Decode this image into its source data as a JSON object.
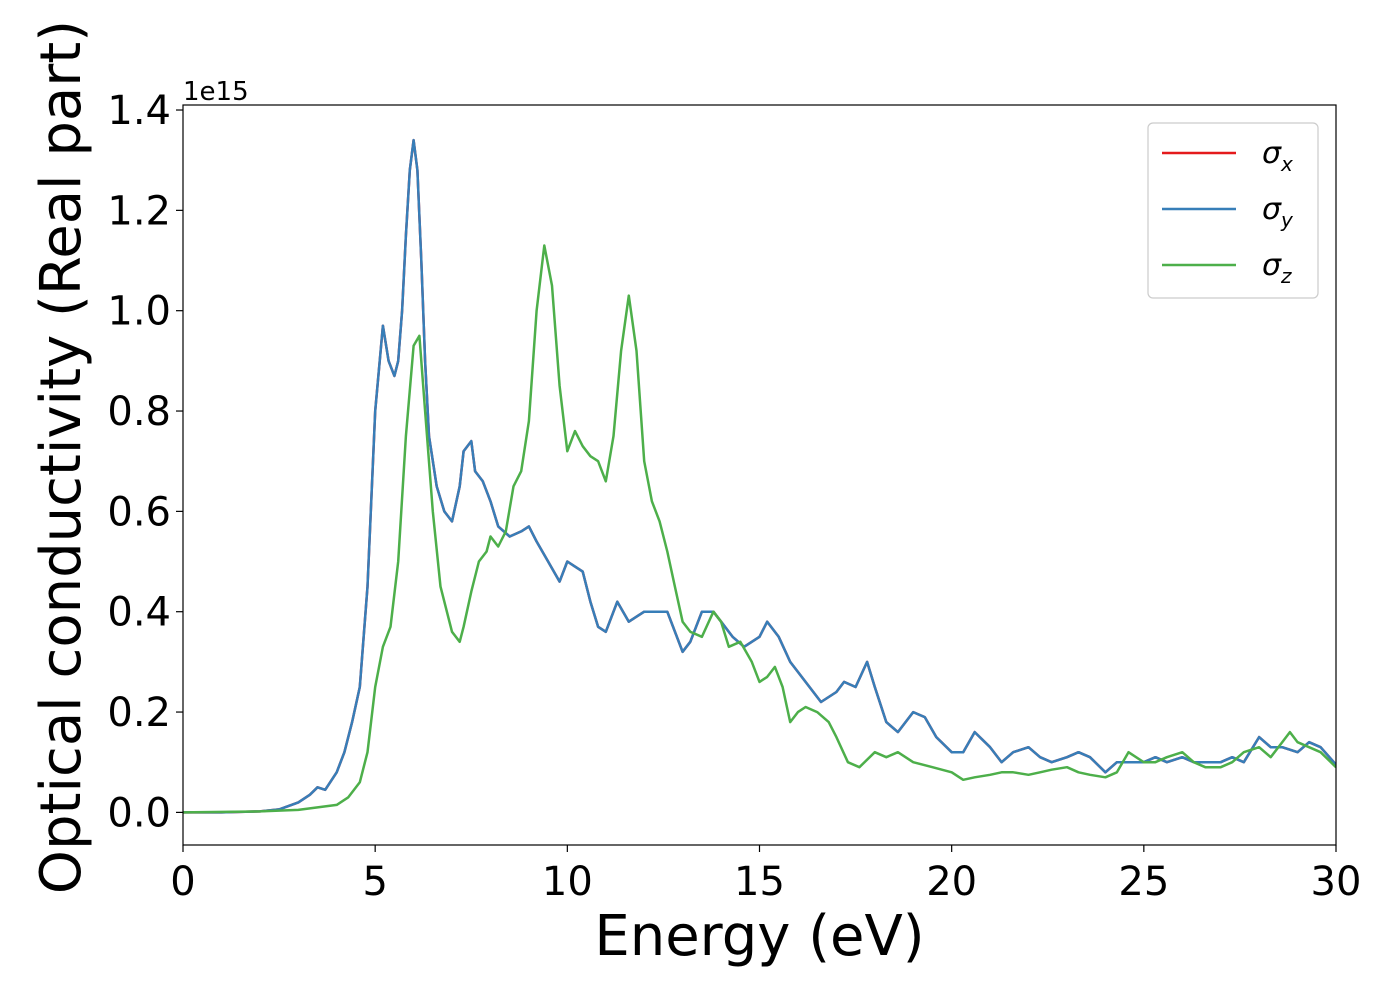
{
  "chart_data": {
    "type": "line",
    "xlabel": "Energy (eV)",
    "ylabel": "Optical conductivity (Real part)",
    "y_offset_text": "1e15",
    "y_multiplier": 1000000000000000.0,
    "xlim": [
      0,
      30
    ],
    "ylim": [
      -0.065,
      1.41
    ],
    "xticks": [
      0,
      5,
      10,
      15,
      20,
      25,
      30
    ],
    "xtick_labels": [
      "0",
      "5",
      "10",
      "15",
      "20",
      "25",
      "30"
    ],
    "yticks": [
      0.0,
      0.2,
      0.4,
      0.6,
      0.8,
      1.0,
      1.2,
      1.4
    ],
    "ytick_labels": [
      "0.0",
      "0.2",
      "0.4",
      "0.6",
      "0.8",
      "1.0",
      "1.2",
      "1.4"
    ],
    "grid": false,
    "legend_position": "top-right",
    "series": [
      {
        "name": "σx",
        "legend_symbol": "σ",
        "legend_subscript": "x",
        "color": "#e41a1c",
        "x": [
          0,
          1,
          2,
          2.5,
          3,
          3.3,
          3.5,
          3.7,
          4,
          4.2,
          4.4,
          4.6,
          4.8,
          5,
          5.2,
          5.35,
          5.5,
          5.6,
          5.7,
          5.8,
          5.9,
          6.0,
          6.1,
          6.2,
          6.3,
          6.4,
          6.6,
          6.8,
          7.0,
          7.2,
          7.3,
          7.5,
          7.6,
          7.8,
          8.0,
          8.2,
          8.5,
          8.8,
          9.0,
          9.2,
          9.5,
          9.8,
          10.0,
          10.2,
          10.4,
          10.6,
          10.8,
          11.0,
          11.3,
          11.6,
          12.0,
          12.3,
          12.6,
          13.0,
          13.2,
          13.5,
          13.8,
          14.0,
          14.3,
          14.6,
          15.0,
          15.2,
          15.5,
          15.8,
          16.0,
          16.3,
          16.6,
          17.0,
          17.2,
          17.5,
          17.8,
          18.0,
          18.3,
          18.6,
          19.0,
          19.3,
          19.6,
          20.0,
          20.3,
          20.6,
          21.0,
          21.3,
          21.6,
          22.0,
          22.3,
          22.6,
          23.0,
          23.3,
          23.6,
          24.0,
          24.3,
          24.6,
          25.0,
          25.3,
          25.6,
          26.0,
          26.3,
          26.6,
          27.0,
          27.3,
          27.6,
          28.0,
          28.3,
          28.6,
          29.0,
          29.3,
          29.6,
          30.0
        ],
        "y": [
          0,
          0,
          0.002,
          0.006,
          0.02,
          0.035,
          0.05,
          0.045,
          0.08,
          0.12,
          0.18,
          0.25,
          0.45,
          0.8,
          0.97,
          0.9,
          0.87,
          0.9,
          1.0,
          1.15,
          1.28,
          1.34,
          1.28,
          1.1,
          0.9,
          0.75,
          0.65,
          0.6,
          0.58,
          0.65,
          0.72,
          0.74,
          0.68,
          0.66,
          0.62,
          0.57,
          0.55,
          0.56,
          0.57,
          0.54,
          0.5,
          0.46,
          0.5,
          0.49,
          0.48,
          0.42,
          0.37,
          0.36,
          0.42,
          0.38,
          0.4,
          0.4,
          0.4,
          0.32,
          0.34,
          0.4,
          0.4,
          0.38,
          0.35,
          0.33,
          0.35,
          0.38,
          0.35,
          0.3,
          0.28,
          0.25,
          0.22,
          0.24,
          0.26,
          0.25,
          0.3,
          0.25,
          0.18,
          0.16,
          0.2,
          0.19,
          0.15,
          0.12,
          0.12,
          0.16,
          0.13,
          0.1,
          0.12,
          0.13,
          0.11,
          0.1,
          0.11,
          0.12,
          0.11,
          0.08,
          0.1,
          0.1,
          0.1,
          0.11,
          0.1,
          0.11,
          0.1,
          0.1,
          0.1,
          0.11,
          0.1,
          0.15,
          0.13,
          0.13,
          0.12,
          0.14,
          0.13,
          0.095
        ]
      },
      {
        "name": "σy",
        "legend_symbol": "σ",
        "legend_subscript": "y",
        "color": "#377eb8",
        "x": [
          0,
          1,
          2,
          2.5,
          3,
          3.3,
          3.5,
          3.7,
          4,
          4.2,
          4.4,
          4.6,
          4.8,
          5,
          5.2,
          5.35,
          5.5,
          5.6,
          5.7,
          5.8,
          5.9,
          6.0,
          6.1,
          6.2,
          6.3,
          6.4,
          6.6,
          6.8,
          7.0,
          7.2,
          7.3,
          7.5,
          7.6,
          7.8,
          8.0,
          8.2,
          8.5,
          8.8,
          9.0,
          9.2,
          9.5,
          9.8,
          10.0,
          10.2,
          10.4,
          10.6,
          10.8,
          11.0,
          11.3,
          11.6,
          12.0,
          12.3,
          12.6,
          13.0,
          13.2,
          13.5,
          13.8,
          14.0,
          14.3,
          14.6,
          15.0,
          15.2,
          15.5,
          15.8,
          16.0,
          16.3,
          16.6,
          17.0,
          17.2,
          17.5,
          17.8,
          18.0,
          18.3,
          18.6,
          19.0,
          19.3,
          19.6,
          20.0,
          20.3,
          20.6,
          21.0,
          21.3,
          21.6,
          22.0,
          22.3,
          22.6,
          23.0,
          23.3,
          23.6,
          24.0,
          24.3,
          24.6,
          25.0,
          25.3,
          25.6,
          26.0,
          26.3,
          26.6,
          27.0,
          27.3,
          27.6,
          28.0,
          28.3,
          28.6,
          29.0,
          29.3,
          29.6,
          30.0
        ],
        "y": [
          0,
          0,
          0.002,
          0.006,
          0.02,
          0.035,
          0.05,
          0.045,
          0.08,
          0.12,
          0.18,
          0.25,
          0.45,
          0.8,
          0.97,
          0.9,
          0.87,
          0.9,
          1.0,
          1.15,
          1.28,
          1.34,
          1.28,
          1.1,
          0.9,
          0.75,
          0.65,
          0.6,
          0.58,
          0.65,
          0.72,
          0.74,
          0.68,
          0.66,
          0.62,
          0.57,
          0.55,
          0.56,
          0.57,
          0.54,
          0.5,
          0.46,
          0.5,
          0.49,
          0.48,
          0.42,
          0.37,
          0.36,
          0.42,
          0.38,
          0.4,
          0.4,
          0.4,
          0.32,
          0.34,
          0.4,
          0.4,
          0.38,
          0.35,
          0.33,
          0.35,
          0.38,
          0.35,
          0.3,
          0.28,
          0.25,
          0.22,
          0.24,
          0.26,
          0.25,
          0.3,
          0.25,
          0.18,
          0.16,
          0.2,
          0.19,
          0.15,
          0.12,
          0.12,
          0.16,
          0.13,
          0.1,
          0.12,
          0.13,
          0.11,
          0.1,
          0.11,
          0.12,
          0.11,
          0.08,
          0.1,
          0.1,
          0.1,
          0.11,
          0.1,
          0.11,
          0.1,
          0.1,
          0.1,
          0.11,
          0.1,
          0.15,
          0.13,
          0.13,
          0.12,
          0.14,
          0.13,
          0.095
        ]
      },
      {
        "name": "σz",
        "legend_symbol": "σ",
        "legend_subscript": "z",
        "color": "#4daf4a",
        "x": [
          0,
          2,
          3,
          4,
          4.3,
          4.6,
          4.8,
          5.0,
          5.2,
          5.4,
          5.6,
          5.8,
          6.0,
          6.15,
          6.3,
          6.5,
          6.7,
          7.0,
          7.2,
          7.3,
          7.5,
          7.7,
          7.9,
          8.0,
          8.2,
          8.4,
          8.6,
          8.8,
          9.0,
          9.2,
          9.4,
          9.6,
          9.8,
          10.0,
          10.2,
          10.4,
          10.6,
          10.8,
          11.0,
          11.2,
          11.4,
          11.6,
          11.8,
          12.0,
          12.2,
          12.4,
          12.6,
          12.8,
          13.0,
          13.2,
          13.5,
          13.8,
          14.0,
          14.2,
          14.5,
          14.8,
          15.0,
          15.2,
          15.4,
          15.6,
          15.8,
          16.0,
          16.2,
          16.5,
          16.8,
          17.0,
          17.3,
          17.6,
          18.0,
          18.3,
          18.6,
          19.0,
          19.5,
          20.0,
          20.3,
          20.6,
          21.0,
          21.3,
          21.6,
          22.0,
          22.3,
          22.6,
          23.0,
          23.3,
          23.6,
          24.0,
          24.3,
          24.6,
          25.0,
          25.3,
          25.6,
          26.0,
          26.3,
          26.6,
          27.0,
          27.3,
          27.6,
          28.0,
          28.3,
          28.6,
          28.8,
          29.0,
          29.3,
          29.6,
          30.0
        ],
        "y": [
          0,
          0.002,
          0.005,
          0.015,
          0.03,
          0.06,
          0.12,
          0.25,
          0.33,
          0.37,
          0.5,
          0.75,
          0.93,
          0.95,
          0.8,
          0.6,
          0.45,
          0.36,
          0.34,
          0.37,
          0.44,
          0.5,
          0.52,
          0.55,
          0.53,
          0.56,
          0.65,
          0.68,
          0.78,
          1.0,
          1.13,
          1.05,
          0.85,
          0.72,
          0.76,
          0.73,
          0.71,
          0.7,
          0.66,
          0.75,
          0.92,
          1.03,
          0.92,
          0.7,
          0.62,
          0.58,
          0.52,
          0.45,
          0.38,
          0.36,
          0.35,
          0.4,
          0.38,
          0.33,
          0.34,
          0.3,
          0.26,
          0.27,
          0.29,
          0.25,
          0.18,
          0.2,
          0.21,
          0.2,
          0.18,
          0.15,
          0.1,
          0.09,
          0.12,
          0.11,
          0.12,
          0.1,
          0.09,
          0.08,
          0.065,
          0.07,
          0.075,
          0.08,
          0.08,
          0.075,
          0.08,
          0.085,
          0.09,
          0.08,
          0.075,
          0.07,
          0.08,
          0.12,
          0.1,
          0.1,
          0.11,
          0.12,
          0.1,
          0.09,
          0.09,
          0.1,
          0.12,
          0.13,
          0.11,
          0.14,
          0.16,
          0.14,
          0.13,
          0.12,
          0.09
        ]
      }
    ]
  }
}
